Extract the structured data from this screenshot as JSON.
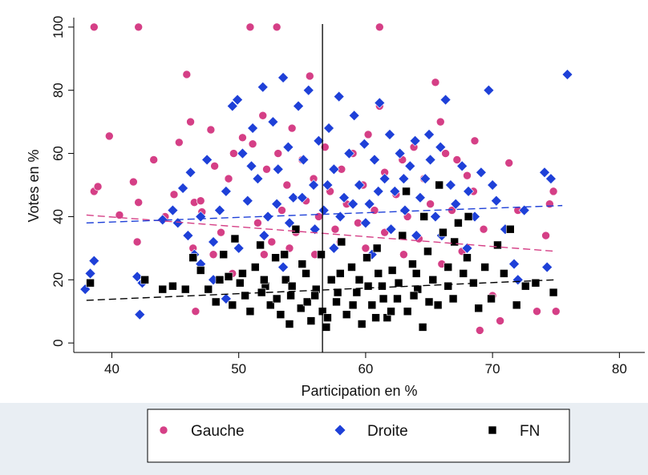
{
  "chart_data": {
    "type": "scatter",
    "title": "",
    "xlabel": "Participation en %",
    "ylabel": "Votes en %",
    "xlim": [
      37,
      82
    ],
    "ylim": [
      -3,
      103
    ],
    "xticks": [
      40,
      50,
      60,
      70,
      80
    ],
    "yticks": [
      0,
      20,
      40,
      60,
      80,
      100
    ],
    "grid": false,
    "legend_position": "bottom",
    "vertical_reference_line": {
      "x": 56.6,
      "color": "#000000"
    },
    "colors": {
      "Gauche": "#d53f86",
      "Droite": "#1e40d8",
      "FN": "#000000",
      "frame_outer": "#e9eef3"
    },
    "series": [
      {
        "name": "Gauche",
        "marker": "circle",
        "color": "#d53f86",
        "trend": {
          "x": [
            38,
            75
          ],
          "y": [
            40.5,
            29.0
          ],
          "style": "dash"
        },
        "points": [
          [
            38.6,
            100
          ],
          [
            42.1,
            100
          ],
          [
            50.9,
            100
          ],
          [
            53.0,
            100
          ],
          [
            61.1,
            100
          ],
          [
            38.6,
            48
          ],
          [
            38.9,
            49.5
          ],
          [
            39.8,
            65.5
          ],
          [
            40.6,
            40.5
          ],
          [
            41.7,
            51
          ],
          [
            42.0,
            32
          ],
          [
            42.1,
            44.5
          ],
          [
            43.3,
            58
          ],
          [
            44.2,
            40
          ],
          [
            44.9,
            47
          ],
          [
            45.3,
            63.5
          ],
          [
            45.9,
            85
          ],
          [
            46.2,
            70
          ],
          [
            46.5,
            44.5
          ],
          [
            46.4,
            30
          ],
          [
            46.6,
            10
          ],
          [
            47.1,
            41.5
          ],
          [
            47.8,
            67.5
          ],
          [
            48.1,
            56
          ],
          [
            48.6,
            35
          ],
          [
            49.2,
            52
          ],
          [
            49.6,
            60
          ],
          [
            50.3,
            65
          ],
          [
            50.7,
            45
          ],
          [
            51.1,
            63
          ],
          [
            51.5,
            38
          ],
          [
            51.9,
            72
          ],
          [
            52.2,
            55
          ],
          [
            52.6,
            32
          ],
          [
            53.1,
            60
          ],
          [
            53.4,
            42
          ],
          [
            53.8,
            50
          ],
          [
            54.2,
            68
          ],
          [
            54.5,
            35
          ],
          [
            55.0,
            58
          ],
          [
            55.3,
            45
          ],
          [
            55.6,
            84.5
          ],
          [
            55.9,
            52
          ],
          [
            56.3,
            40
          ],
          [
            56.8,
            62
          ],
          [
            57.2,
            48
          ],
          [
            57.6,
            36
          ],
          [
            58.1,
            55
          ],
          [
            58.5,
            44
          ],
          [
            59.0,
            60
          ],
          [
            59.4,
            38
          ],
          [
            59.8,
            50
          ],
          [
            60.2,
            66
          ],
          [
            60.7,
            42
          ],
          [
            61.1,
            75
          ],
          [
            61.5,
            54
          ],
          [
            62.0,
            36
          ],
          [
            62.4,
            47
          ],
          [
            62.9,
            58
          ],
          [
            63.3,
            40
          ],
          [
            63.8,
            62
          ],
          [
            64.2,
            33
          ],
          [
            64.6,
            52
          ],
          [
            65.1,
            44
          ],
          [
            65.5,
            82.5
          ],
          [
            65.9,
            70
          ],
          [
            66.3,
            60
          ],
          [
            66.8,
            42
          ],
          [
            67.2,
            58
          ],
          [
            67.6,
            29
          ],
          [
            68.0,
            53
          ],
          [
            68.5,
            48
          ],
          [
            69.0,
            4
          ],
          [
            68.6,
            64
          ],
          [
            69.3,
            36
          ],
          [
            70.0,
            15
          ],
          [
            70.6,
            7
          ],
          [
            71.3,
            57
          ],
          [
            72.0,
            42
          ],
          [
            73.5,
            10
          ],
          [
            74.2,
            34
          ],
          [
            74.5,
            44
          ],
          [
            74.8,
            48
          ],
          [
            75.0,
            10
          ],
          [
            60.0,
            30
          ],
          [
            58.0,
            32
          ],
          [
            54.0,
            30
          ],
          [
            52.0,
            28
          ],
          [
            63.0,
            28
          ],
          [
            61.5,
            35
          ],
          [
            56.0,
            28
          ],
          [
            48.0,
            28
          ],
          [
            49.5,
            22
          ],
          [
            66.0,
            25
          ],
          [
            47.0,
            45
          ]
        ]
      },
      {
        "name": "Droite",
        "marker": "diamond",
        "color": "#1e40d8",
        "trend": {
          "x": [
            38,
            75.5
          ],
          "y": [
            38.0,
            43.5
          ],
          "style": "dash"
        },
        "points": [
          [
            37.9,
            17
          ],
          [
            38.3,
            22
          ],
          [
            38.6,
            26
          ],
          [
            42.0,
            21
          ],
          [
            42.2,
            9
          ],
          [
            42.4,
            19
          ],
          [
            44.0,
            39
          ],
          [
            44.8,
            42
          ],
          [
            45.2,
            38
          ],
          [
            45.6,
            49
          ],
          [
            46.2,
            54
          ],
          [
            46.5,
            28
          ],
          [
            47.0,
            40
          ],
          [
            47.5,
            58
          ],
          [
            48.0,
            20
          ],
          [
            48.5,
            42
          ],
          [
            49.0,
            48
          ],
          [
            49.5,
            75
          ],
          [
            49.9,
            77
          ],
          [
            50.3,
            60
          ],
          [
            50.7,
            45
          ],
          [
            51.1,
            68
          ],
          [
            51.5,
            52
          ],
          [
            51.9,
            81
          ],
          [
            52.3,
            40
          ],
          [
            52.7,
            70
          ],
          [
            53.1,
            55
          ],
          [
            53.5,
            84
          ],
          [
            53.9,
            62
          ],
          [
            54.3,
            46
          ],
          [
            54.7,
            75
          ],
          [
            55.1,
            58
          ],
          [
            55.5,
            80
          ],
          [
            55.9,
            50
          ],
          [
            56.3,
            64
          ],
          [
            56.7,
            42
          ],
          [
            57.1,
            68
          ],
          [
            57.5,
            55
          ],
          [
            57.9,
            78
          ],
          [
            58.3,
            46
          ],
          [
            58.7,
            60
          ],
          [
            59.1,
            72
          ],
          [
            59.5,
            50
          ],
          [
            59.9,
            63
          ],
          [
            60.3,
            44
          ],
          [
            60.7,
            58
          ],
          [
            61.1,
            76
          ],
          [
            61.5,
            52
          ],
          [
            61.9,
            66
          ],
          [
            62.3,
            48
          ],
          [
            62.7,
            60
          ],
          [
            63.1,
            42
          ],
          [
            63.5,
            56
          ],
          [
            63.9,
            64
          ],
          [
            64.3,
            46
          ],
          [
            64.7,
            52
          ],
          [
            65.1,
            58
          ],
          [
            65.5,
            40
          ],
          [
            65.9,
            62
          ],
          [
            66.3,
            77
          ],
          [
            66.7,
            50
          ],
          [
            67.1,
            44
          ],
          [
            67.6,
            56
          ],
          [
            68.1,
            48
          ],
          [
            68.6,
            40
          ],
          [
            69.1,
            54
          ],
          [
            69.7,
            80
          ],
          [
            70.3,
            45
          ],
          [
            71.0,
            36
          ],
          [
            71.7,
            25
          ],
          [
            72.5,
            42
          ],
          [
            74.1,
            54
          ],
          [
            74.6,
            52
          ],
          [
            74.3,
            24
          ],
          [
            75.9,
            85
          ],
          [
            50.0,
            30
          ],
          [
            52.0,
            34
          ],
          [
            54.0,
            38
          ],
          [
            56.0,
            36
          ],
          [
            58.0,
            40
          ],
          [
            60.0,
            38
          ],
          [
            62.0,
            36
          ],
          [
            64.0,
            34
          ],
          [
            55.0,
            46
          ],
          [
            57.0,
            50
          ],
          [
            59.0,
            44
          ],
          [
            61.0,
            48
          ],
          [
            63.0,
            52
          ],
          [
            53.0,
            44
          ],
          [
            51.0,
            56
          ],
          [
            48.0,
            32
          ],
          [
            46.0,
            34
          ],
          [
            66.0,
            34
          ],
          [
            68.0,
            30
          ],
          [
            70.0,
            50
          ],
          [
            72.0,
            20
          ],
          [
            53.5,
            24
          ],
          [
            57.5,
            30
          ],
          [
            60.5,
            28
          ],
          [
            49.0,
            14
          ],
          [
            47.0,
            25
          ],
          [
            65.0,
            66
          ]
        ]
      },
      {
        "name": "FN",
        "marker": "square",
        "color": "#000000",
        "trend": {
          "x": [
            38,
            75
          ],
          "y": [
            13.5,
            20.0
          ],
          "style": "dash"
        },
        "points": [
          [
            38.3,
            19
          ],
          [
            42.6,
            20
          ],
          [
            44.0,
            17
          ],
          [
            44.8,
            18
          ],
          [
            45.8,
            17
          ],
          [
            46.4,
            27
          ],
          [
            47.0,
            23
          ],
          [
            47.6,
            17
          ],
          [
            48.2,
            13
          ],
          [
            48.8,
            28
          ],
          [
            49.2,
            21
          ],
          [
            49.7,
            33
          ],
          [
            50.1,
            19
          ],
          [
            50.5,
            15
          ],
          [
            50.9,
            10
          ],
          [
            51.3,
            24
          ],
          [
            51.7,
            31
          ],
          [
            52.1,
            18
          ],
          [
            52.5,
            12
          ],
          [
            52.9,
            27
          ],
          [
            53.3,
            9
          ],
          [
            53.7,
            20
          ],
          [
            54.1,
            15
          ],
          [
            54.5,
            36
          ],
          [
            54.9,
            11
          ],
          [
            55.3,
            22
          ],
          [
            55.7,
            7
          ],
          [
            56.1,
            17
          ],
          [
            56.5,
            28
          ],
          [
            56.9,
            5
          ],
          [
            57.3,
            20
          ],
          [
            57.7,
            13
          ],
          [
            58.1,
            32
          ],
          [
            58.5,
            9
          ],
          [
            58.9,
            24
          ],
          [
            59.3,
            16
          ],
          [
            59.7,
            6
          ],
          [
            60.1,
            27
          ],
          [
            60.5,
            12
          ],
          [
            60.9,
            30
          ],
          [
            61.3,
            18
          ],
          [
            61.7,
            8
          ],
          [
            62.1,
            23
          ],
          [
            62.5,
            14
          ],
          [
            62.9,
            34
          ],
          [
            63.3,
            10
          ],
          [
            63.7,
            25
          ],
          [
            64.1,
            17
          ],
          [
            64.5,
            5
          ],
          [
            64.9,
            29
          ],
          [
            65.3,
            20
          ],
          [
            65.7,
            12
          ],
          [
            66.1,
            35
          ],
          [
            66.5,
            24
          ],
          [
            66.9,
            14
          ],
          [
            67.3,
            38
          ],
          [
            67.7,
            22
          ],
          [
            68.1,
            40
          ],
          [
            68.5,
            19
          ],
          [
            68.9,
            11
          ],
          [
            69.4,
            24
          ],
          [
            69.9,
            14
          ],
          [
            70.4,
            31
          ],
          [
            70.9,
            22
          ],
          [
            71.4,
            36
          ],
          [
            71.9,
            12
          ],
          [
            72.6,
            18
          ],
          [
            73.4,
            19
          ],
          [
            74.8,
            16
          ],
          [
            50.3,
            22
          ],
          [
            51.8,
            16
          ],
          [
            53.0,
            14
          ],
          [
            54.2,
            18
          ],
          [
            55.4,
            13
          ],
          [
            56.6,
            10
          ],
          [
            57.8,
            16
          ],
          [
            59.0,
            12
          ],
          [
            60.2,
            18
          ],
          [
            61.4,
            14
          ],
          [
            62.6,
            19
          ],
          [
            63.8,
            15
          ],
          [
            65.0,
            13
          ],
          [
            55.0,
            25
          ],
          [
            58.0,
            22
          ],
          [
            61.0,
            22
          ],
          [
            64.0,
            22
          ],
          [
            52.0,
            20
          ],
          [
            49.5,
            12
          ],
          [
            66.5,
            18
          ],
          [
            68.0,
            27
          ],
          [
            56.0,
            15
          ],
          [
            57.0,
            8
          ],
          [
            59.5,
            20
          ],
          [
            62.0,
            10
          ],
          [
            54.0,
            6
          ],
          [
            60.8,
            8
          ],
          [
            53.6,
            28
          ],
          [
            64.6,
            40
          ],
          [
            65.8,
            50
          ],
          [
            63.2,
            48
          ],
          [
            67.0,
            32
          ],
          [
            48.5,
            20
          ]
        ]
      }
    ]
  }
}
